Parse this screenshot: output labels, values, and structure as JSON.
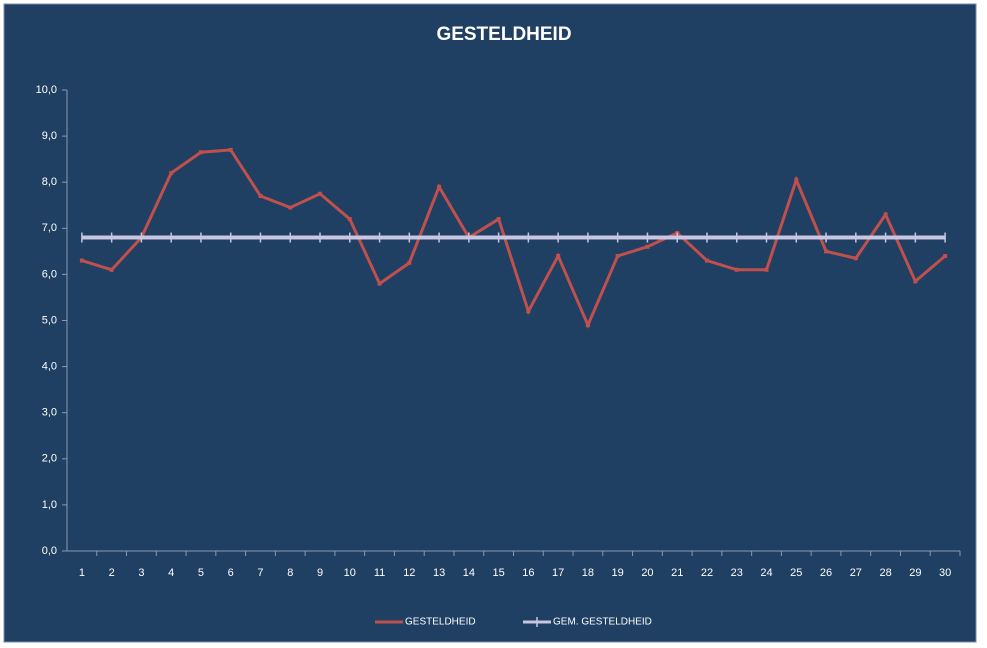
{
  "chart_data": {
    "type": "line",
    "title": "GESTELDHEID",
    "categories": [
      "1",
      "2",
      "3",
      "4",
      "5",
      "6",
      "7",
      "8",
      "9",
      "10",
      "11",
      "12",
      "13",
      "14",
      "15",
      "16",
      "17",
      "18",
      "19",
      "20",
      "21",
      "22",
      "23",
      "24",
      "25",
      "26",
      "27",
      "28",
      "29",
      "30"
    ],
    "series": [
      {
        "name": "GESTELDHEID",
        "color": "#c0504d",
        "values": [
          6.3,
          6.1,
          6.8,
          8.2,
          8.65,
          8.7,
          7.7,
          7.45,
          7.75,
          7.2,
          5.8,
          6.25,
          7.9,
          6.8,
          7.2,
          5.2,
          6.4,
          4.9,
          6.4,
          6.6,
          6.9,
          6.3,
          6.1,
          6.1,
          8.05,
          6.5,
          6.35,
          7.3,
          5.85,
          6.4
        ]
      },
      {
        "name": "GEM. GESTELDHEID",
        "color": "#c9c6e2",
        "values": [
          6.8,
          6.8,
          6.8,
          6.8,
          6.8,
          6.8,
          6.8,
          6.8,
          6.8,
          6.8,
          6.8,
          6.8,
          6.8,
          6.8,
          6.8,
          6.8,
          6.8,
          6.8,
          6.8,
          6.8,
          6.8,
          6.8,
          6.8,
          6.8,
          6.8,
          6.8,
          6.8,
          6.8,
          6.8,
          6.8
        ]
      }
    ],
    "ylim": [
      0,
      10
    ],
    "yticks": [
      {
        "value": 0,
        "label": "0,0"
      },
      {
        "value": 1,
        "label": "1,0"
      },
      {
        "value": 2,
        "label": "2,0"
      },
      {
        "value": 3,
        "label": "3,0"
      },
      {
        "value": 4,
        "label": "4,0"
      },
      {
        "value": 5,
        "label": "5,0"
      },
      {
        "value": 6,
        "label": "6,0"
      },
      {
        "value": 7,
        "label": "7,0"
      },
      {
        "value": 8,
        "label": "8,0"
      },
      {
        "value": 9,
        "label": "9,0"
      },
      {
        "value": 10,
        "label": "10,0"
      }
    ],
    "legend": "bottom"
  }
}
